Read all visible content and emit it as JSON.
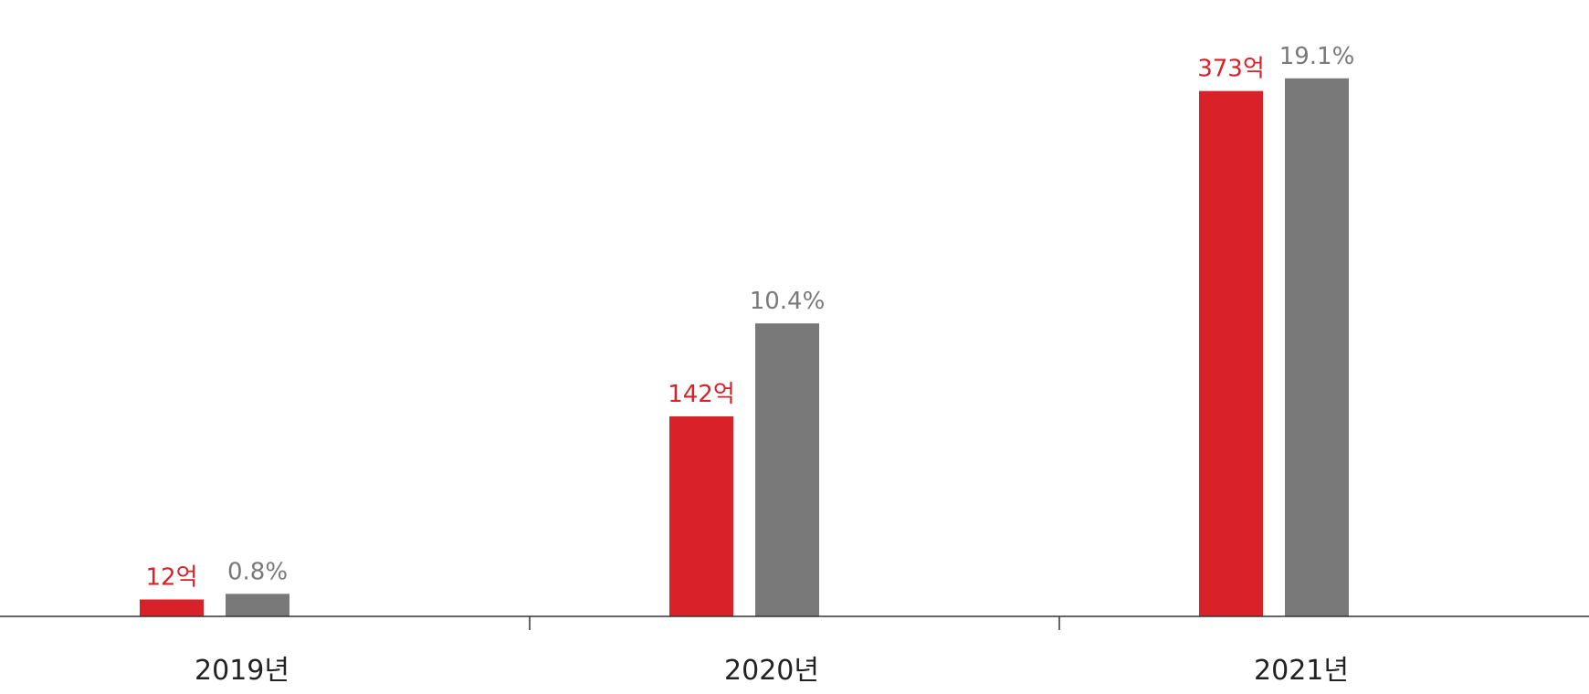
{
  "colors": {
    "series_a": "#d9212a",
    "series_b": "#797979",
    "axis": "#333333",
    "category_text": "#222222"
  },
  "chart_data": {
    "type": "bar",
    "categories": [
      "2019년",
      "2020년",
      "2021년"
    ],
    "series": [
      {
        "values": [
          12,
          142,
          373
        ],
        "labels": [
          "12억",
          "142억",
          "373억"
        ]
      },
      {
        "values": [
          0.8,
          10.4,
          19.1
        ],
        "labels": [
          "0.8%",
          "10.4%",
          "19.1%"
        ]
      }
    ],
    "title": "",
    "xlabel": "",
    "ylabel": "",
    "ylim": [
      0,
      400
    ],
    "secondary_ylim": [
      0,
      20
    ],
    "grid": false,
    "legend": "none"
  }
}
